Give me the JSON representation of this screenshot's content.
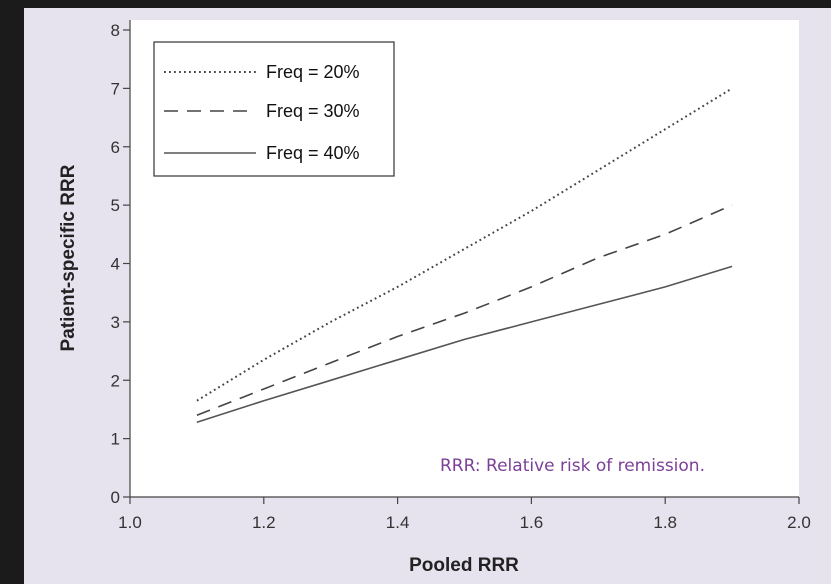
{
  "chart_data": {
    "type": "line",
    "xlabel": "Pooled RRR",
    "ylabel": "Patient-specific RRR",
    "xlim": [
      1.0,
      2.0
    ],
    "ylim": [
      0,
      8
    ],
    "x_ticks": [
      "1.0",
      "1.2",
      "1.4",
      "1.6",
      "1.8",
      "2.0"
    ],
    "y_ticks": [
      "0",
      "1",
      "2",
      "3",
      "4",
      "5",
      "6",
      "7",
      "8"
    ],
    "grid": false,
    "legend_position": "top-left",
    "annotation": "RRR: Relative risk of remission.",
    "series": [
      {
        "name": "Freq = 20%",
        "style": "dotted",
        "color": "#444444",
        "x": [
          1.1,
          1.2,
          1.3,
          1.4,
          1.5,
          1.6,
          1.7,
          1.8,
          1.9
        ],
        "y": [
          1.65,
          2.35,
          3.0,
          3.6,
          4.25,
          4.9,
          5.6,
          6.3,
          7.0
        ]
      },
      {
        "name": "Freq = 30%",
        "style": "dashed",
        "color": "#444444",
        "x": [
          1.1,
          1.2,
          1.3,
          1.4,
          1.5,
          1.6,
          1.7,
          1.8,
          1.9
        ],
        "y": [
          1.4,
          1.85,
          2.3,
          2.75,
          3.15,
          3.6,
          4.1,
          4.5,
          5.0
        ]
      },
      {
        "name": "Freq = 40%",
        "style": "solid",
        "color": "#555555",
        "x": [
          1.1,
          1.2,
          1.3,
          1.4,
          1.5,
          1.6,
          1.7,
          1.8,
          1.9
        ],
        "y": [
          1.28,
          1.65,
          2.0,
          2.35,
          2.7,
          3.0,
          3.3,
          3.6,
          3.95
        ]
      }
    ]
  }
}
